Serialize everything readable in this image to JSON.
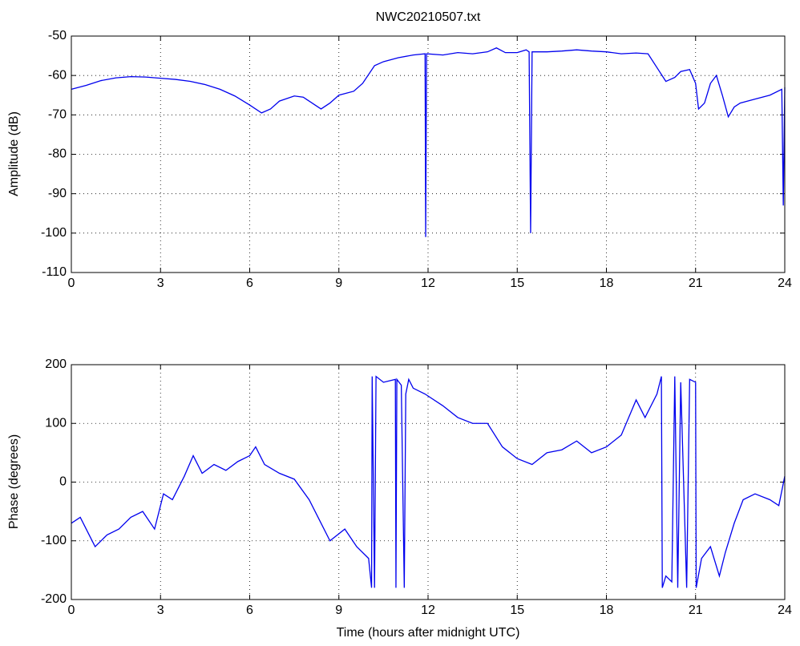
{
  "chart_data": [
    {
      "type": "line",
      "title": "NWC20210507.txt",
      "ylabel": "Amplitude (dB)",
      "grid": true,
      "xlim": [
        0,
        24
      ],
      "xticks": [
        0,
        3,
        6,
        9,
        12,
        15,
        18,
        21,
        24
      ],
      "ylim": [
        -110,
        -50
      ],
      "yticks": [
        -110,
        -100,
        -90,
        -80,
        -70,
        -60,
        -50
      ],
      "x": [
        0,
        0.5,
        1,
        1.5,
        2,
        2.5,
        3,
        3.5,
        4,
        4.5,
        5,
        5.5,
        6,
        6.4,
        6.7,
        7,
        7.5,
        7.8,
        8.2,
        8.4,
        8.7,
        9,
        9.5,
        9.8,
        10.2,
        10.5,
        11,
        11.5,
        11.9,
        11.92,
        11.95,
        12.5,
        13,
        13.5,
        14,
        14.3,
        14.6,
        15,
        15.3,
        15.4,
        15.45,
        15.5,
        16,
        16.5,
        17,
        17.5,
        18,
        18.5,
        19,
        19.4,
        19.7,
        20,
        20.3,
        20.5,
        20.8,
        21,
        21.1,
        21.3,
        21.5,
        21.7,
        21.9,
        22.1,
        22.3,
        22.5,
        23,
        23.5,
        23.9,
        23.95,
        24
      ],
      "series": [
        {
          "color": "#0000ee",
          "values": [
            -63.5,
            -62.5,
            -61.3,
            -60.6,
            -60.3,
            -60.4,
            -60.7,
            -61.0,
            -61.5,
            -62.3,
            -63.5,
            -65.2,
            -67.5,
            -69.5,
            -68.5,
            -66.5,
            -65.2,
            -65.5,
            -67.5,
            -68.5,
            -67.0,
            -65.0,
            -64.0,
            -62.0,
            -57.5,
            -56.5,
            -55.5,
            -54.8,
            -54.5,
            -101,
            -54.5,
            -54.8,
            -54.2,
            -54.5,
            -54.0,
            -53.0,
            -54.2,
            -54.2,
            -53.5,
            -54.0,
            -100,
            -54.0,
            -54.0,
            -53.8,
            -53.5,
            -53.8,
            -54.0,
            -54.5,
            -54.3,
            -54.5,
            -58,
            -61.5,
            -60.5,
            -59,
            -58.5,
            -62,
            -68.5,
            -67,
            -62,
            -60,
            -65,
            -70.5,
            -68,
            -67,
            -66,
            -65,
            -63.5,
            -93,
            -63
          ]
        }
      ]
    },
    {
      "type": "line",
      "ylabel": "Phase (degrees)",
      "xlabel": "Time (hours after midnight UTC)",
      "grid": true,
      "xlim": [
        0,
        24
      ],
      "xticks": [
        0,
        3,
        6,
        9,
        12,
        15,
        18,
        21,
        24
      ],
      "ylim": [
        -200,
        200
      ],
      "yticks": [
        -200,
        -100,
        0,
        100,
        200
      ],
      "x": [
        0,
        0.3,
        0.6,
        0.8,
        1.2,
        1.6,
        2,
        2.4,
        2.8,
        3.1,
        3.4,
        3.8,
        4.1,
        4.4,
        4.8,
        5.2,
        5.6,
        6,
        6.2,
        6.5,
        7,
        7.5,
        8,
        8.3,
        8.7,
        9.2,
        9.6,
        10,
        10.1,
        10.12,
        10.2,
        10.25,
        10.5,
        10.9,
        10.92,
        10.95,
        11.1,
        11.2,
        11.25,
        11.35,
        11.5,
        11.9,
        12.5,
        13,
        13.5,
        14,
        14.5,
        15,
        15.5,
        16,
        16.5,
        17,
        17.5,
        18,
        18.5,
        19,
        19.3,
        19.7,
        19.85,
        19.88,
        20,
        20.2,
        20.3,
        20.4,
        20.5,
        20.7,
        20.8,
        21,
        21.02,
        21.2,
        21.5,
        21.8,
        22,
        22.3,
        22.6,
        23,
        23.5,
        23.8,
        24
      ],
      "series": [
        {
          "color": "#0000ee",
          "values": [
            -70,
            -60,
            -90,
            -110,
            -90,
            -80,
            -60,
            -50,
            -80,
            -20,
            -30,
            10,
            45,
            15,
            30,
            20,
            35,
            45,
            60,
            30,
            15,
            5,
            -30,
            -60,
            -100,
            -80,
            -110,
            -130,
            -180,
            180,
            -180,
            180,
            170,
            175,
            -180,
            175,
            165,
            -180,
            150,
            175,
            160,
            150,
            130,
            110,
            100,
            100,
            60,
            40,
            30,
            50,
            55,
            70,
            50,
            60,
            80,
            140,
            110,
            150,
            180,
            -180,
            -160,
            -170,
            180,
            -180,
            170,
            -180,
            175,
            170,
            -180,
            -130,
            -110,
            -160,
            -120,
            -70,
            -30,
            -20,
            -30,
            -40,
            10
          ]
        }
      ]
    }
  ]
}
